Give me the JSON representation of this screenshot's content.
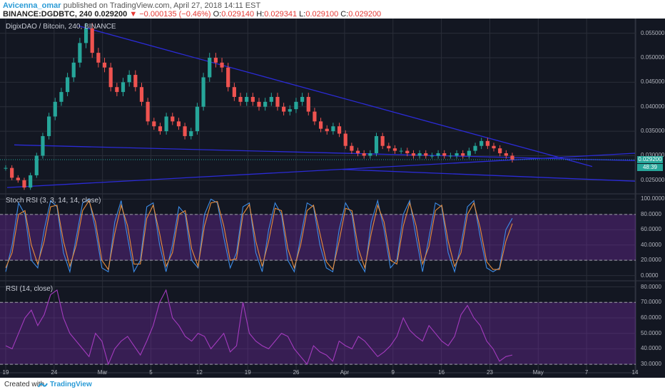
{
  "header": {
    "author": "Avicenna_omar",
    "published": "published on TradingView.com, April 27, 2018 14:11 EST",
    "symbol": "BINANCE:DGDBTC, 240",
    "last": "0.029200",
    "change": "▼ −0.000135 (−0.46%)",
    "o_label": "O:",
    "o": "0.029140",
    "h_label": "H:",
    "h": "0.029341",
    "l_label": "L:",
    "l": "0.029100",
    "c_label": "C:",
    "c": "0.029200"
  },
  "footer": {
    "created": "Created with",
    "brand": "TradingView"
  },
  "colors": {
    "background": "#131722",
    "grid": "#2a2e39",
    "up": "#26a69a",
    "down": "#ef5350",
    "trendline": "#2b2bd6",
    "stoch_k": "#3c8ce7",
    "stoch_d": "#e88d3c",
    "rsi": "#a43bbf",
    "band": "#7b2cb0"
  },
  "badges": {
    "price": "0.029200",
    "countdown": "48:39",
    "price_color": "#26a69a",
    "countdown_color": "#26a69a"
  },
  "chart_data": [
    {
      "type": "candlestick",
      "title": "DigixDAO / Bitcoin, 240, BINANCE",
      "x": [
        "19",
        "24",
        "Mar",
        "5",
        "12",
        "19",
        "26",
        "Apr",
        "9",
        "16",
        "23",
        "May",
        "7",
        "14"
      ],
      "y_ticks": [
        "0.055000",
        "0.050000",
        "0.045000",
        "0.040000",
        "0.035000",
        "0.030000",
        "0.025000"
      ],
      "ylim": [
        0.0225,
        0.058
      ],
      "closes": [
        0.0275,
        0.0255,
        0.025,
        0.0235,
        0.026,
        0.03,
        0.034,
        0.038,
        0.041,
        0.043,
        0.046,
        0.049,
        0.053,
        0.056,
        0.051,
        0.049,
        0.048,
        0.044,
        0.043,
        0.045,
        0.0465,
        0.044,
        0.041,
        0.037,
        0.036,
        0.035,
        0.038,
        0.037,
        0.036,
        0.034,
        0.035,
        0.04,
        0.046,
        0.05,
        0.049,
        0.048,
        0.044,
        0.042,
        0.041,
        0.042,
        0.041,
        0.04,
        0.041,
        0.042,
        0.04,
        0.039,
        0.0395,
        0.041,
        0.042,
        0.039,
        0.037,
        0.0355,
        0.035,
        0.036,
        0.0345,
        0.032,
        0.031,
        0.0305,
        0.03,
        0.0305,
        0.034,
        0.032,
        0.0315,
        0.031,
        0.031,
        0.0305,
        0.03,
        0.0305,
        0.03,
        0.03,
        0.0305,
        0.03,
        0.03,
        0.0305,
        0.03,
        0.031,
        0.032,
        0.033,
        0.032,
        0.0315,
        0.0305,
        0.03,
        0.0292
      ]
    },
    {
      "type": "line",
      "title": "Stoch RSI (3, 3, 14, 14, close)",
      "y_ticks": [
        "100.0000",
        "80.0000",
        "60.0000",
        "40.0000",
        "20.0000",
        "0.0000"
      ],
      "ylim": [
        -5,
        105
      ],
      "band": [
        20,
        80
      ],
      "series": [
        {
          "values": [
            5,
            40,
            95,
            80,
            20,
            10,
            60,
            98,
            90,
            30,
            5,
            50,
            95,
            100,
            60,
            10,
            5,
            70,
            98,
            50,
            5,
            20,
            90,
            95,
            40,
            5,
            40,
            90,
            80,
            20,
            10,
            80,
            100,
            95,
            50,
            10,
            30,
            90,
            95,
            30,
            5,
            60,
            95,
            80,
            20,
            5,
            50,
            95,
            90,
            40,
            10,
            5,
            60,
            95,
            80,
            20,
            5,
            70,
            98,
            60,
            10,
            20,
            80,
            98,
            50,
            5,
            50,
            95,
            90,
            30,
            5,
            40,
            90,
            98,
            50,
            10,
            5,
            10,
            60,
            75
          ]
        },
        {
          "values": [
            10,
            30,
            80,
            85,
            40,
            15,
            45,
            90,
            92,
            45,
            12,
            40,
            85,
            98,
            70,
            20,
            8,
            55,
            92,
            65,
            15,
            15,
            75,
            92,
            55,
            12,
            30,
            80,
            85,
            35,
            12,
            65,
            95,
            97,
            65,
            20,
            22,
            80,
            93,
            45,
            12,
            45,
            88,
            85,
            35,
            10,
            40,
            85,
            92,
            55,
            18,
            8,
            45,
            88,
            85,
            35,
            10,
            55,
            92,
            70,
            20,
            15,
            65,
            95,
            65,
            15,
            38,
            85,
            92,
            45,
            12,
            30,
            80,
            95,
            62,
            18,
            8,
            8,
            45,
            68
          ]
        }
      ]
    },
    {
      "type": "line",
      "title": "RSI (14, close)",
      "y_ticks": [
        "80.0000",
        "70.0000",
        "60.0000",
        "50.0000",
        "40.0000",
        "30.0000"
      ],
      "ylim": [
        25,
        83
      ],
      "band": [
        30,
        70
      ],
      "series": [
        {
          "values": [
            42,
            40,
            50,
            60,
            65,
            55,
            62,
            75,
            78,
            60,
            50,
            45,
            40,
            35,
            50,
            45,
            30,
            40,
            45,
            48,
            42,
            36,
            45,
            55,
            70,
            78,
            60,
            55,
            48,
            45,
            50,
            48,
            40,
            45,
            50,
            38,
            42,
            70,
            50,
            45,
            42,
            40,
            45,
            50,
            48,
            40,
            35,
            30,
            42,
            38,
            36,
            32,
            45,
            42,
            40,
            48,
            45,
            40,
            35,
            38,
            42,
            48,
            60,
            52,
            48,
            45,
            55,
            50,
            45,
            42,
            48,
            62,
            68,
            60,
            55,
            45,
            40,
            32,
            35,
            36
          ]
        }
      ]
    }
  ]
}
